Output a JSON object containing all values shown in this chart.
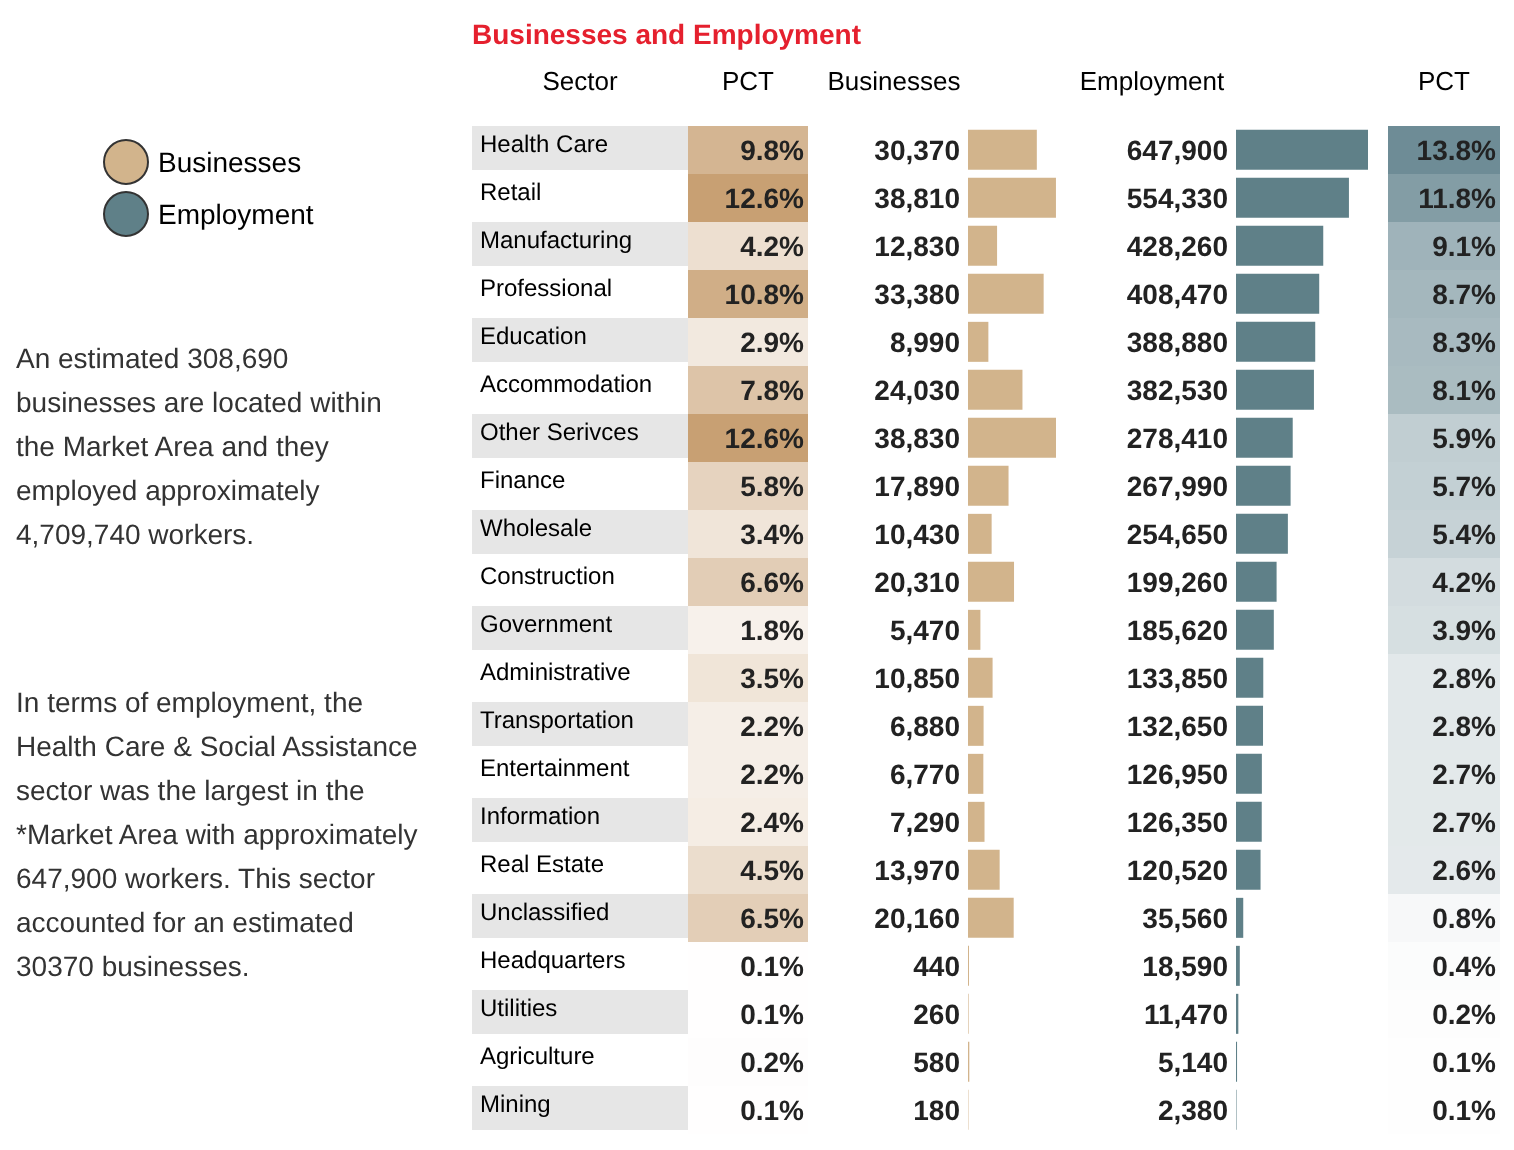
{
  "chart_data": [
    {
      "type": "heatmap",
      "title": "Businesses and Employment",
      "ylabel": "Sector",
      "categories": [
        "PCT"
      ],
      "y_categories": [
        "Health Care",
        "Retail",
        "Manufacturing",
        "Professional",
        "Education",
        "Accommodation",
        "Other Serivces",
        "Finance",
        "Wholesale",
        "Construction",
        "Government",
        "Administrative",
        "Transportation",
        "Entertainment",
        "Information",
        "Real Estate",
        "Unclassified",
        "Headquarters",
        "Utilities",
        "Agriculture",
        "Mining"
      ],
      "cells": [
        [
          9.8
        ],
        [
          12.6
        ],
        [
          4.2
        ],
        [
          10.8
        ],
        [
          2.9
        ],
        [
          7.8
        ],
        [
          12.6
        ],
        [
          5.8
        ],
        [
          3.4
        ],
        [
          6.6
        ],
        [
          1.8
        ],
        [
          3.5
        ],
        [
          2.2
        ],
        [
          2.2
        ],
        [
          2.4
        ],
        [
          4.5
        ],
        [
          6.5
        ],
        [
          0.1
        ],
        [
          0.1
        ],
        [
          0.2
        ],
        [
          0.1
        ]
      ],
      "cell_labels": [
        [
          "9.8%"
        ],
        [
          "12.6%"
        ],
        [
          "4.2%"
        ],
        [
          "10.8%"
        ],
        [
          "2.9%"
        ],
        [
          "7.8%"
        ],
        [
          "12.6%"
        ],
        [
          "5.8%"
        ],
        [
          "3.4%"
        ],
        [
          "6.6%"
        ],
        [
          "1.8%"
        ],
        [
          "3.5%"
        ],
        [
          "2.2%"
        ],
        [
          "2.2%"
        ],
        [
          "2.4%"
        ],
        [
          "4.5%"
        ],
        [
          "6.5%"
        ],
        [
          "0.1%"
        ],
        [
          "0.1%"
        ],
        [
          "0.2%"
        ],
        [
          "0.1%"
        ]
      ],
      "annotations": [
        "An estimated 308,690 businesses are located within the Market Area and they employed approximately 4,709,740 workers.",
        "In terms of employment, the Health Care & Social Assistance sector was the largest in the *Market Area with approximately 647,900 workers. This sector accounted for an estimated 30370 businesses."
      ]
    },
    {
      "type": "bar",
      "orientation": "horizontal",
      "xlabel": "Businesses",
      "legend": "left",
      "categories": [
        null,
        null,
        null,
        null,
        null,
        null,
        null,
        null,
        null,
        null,
        null,
        null,
        null,
        null,
        null,
        null,
        null,
        null,
        null,
        null,
        null
      ],
      "series": [
        {
          "name": "Businesses",
          "color": "#d2b48c",
          "values": [
            30370,
            38810,
            12830,
            33380,
            8990,
            24030,
            38830,
            17890,
            10430,
            20310,
            5470,
            10850,
            6880,
            6770,
            7290,
            13970,
            20160,
            440,
            260,
            580,
            180
          ],
          "value_labels": [
            "30,370",
            "38,810",
            "12,830",
            "33,380",
            "8,990",
            "24,030",
            "38,830",
            "17,890",
            "10,430",
            "20,310",
            "5,470",
            "10,850",
            "6,880",
            "6,770",
            "7,290",
            "13,970",
            "20,160",
            "440",
            "260",
            "580",
            "180"
          ]
        }
      ]
    },
    {
      "type": "bar",
      "orientation": "horizontal",
      "xlabel": "Employment",
      "legend": "left",
      "categories": [
        null,
        null,
        null,
        null,
        null,
        null,
        null,
        null,
        null,
        null,
        null,
        null,
        null,
        null,
        null,
        null,
        null,
        null,
        null,
        null,
        null
      ],
      "series": [
        {
          "name": "Employment",
          "color": "#5f8088",
          "values": [
            647900,
            554330,
            428260,
            408470,
            388880,
            382530,
            278410,
            267990,
            254650,
            199260,
            185620,
            133850,
            132650,
            126950,
            126350,
            120520,
            35560,
            18590,
            11470,
            5140,
            2380
          ],
          "value_labels": [
            "647,900",
            "554,330",
            "428,260",
            "408,470",
            "388,880",
            "382,530",
            "278,410",
            "267,990",
            "254,650",
            "199,260",
            "185,620",
            "133,850",
            "132,650",
            "126,950",
            "126,350",
            "120,520",
            "35,560",
            "18,590",
            "11,470",
            "5,140",
            "2,380"
          ]
        }
      ]
    },
    {
      "type": "heatmap",
      "categories": [
        "PCT"
      ],
      "y_categories": [
        null,
        null,
        null,
        null,
        null,
        null,
        null,
        null,
        null,
        null,
        null,
        null,
        null,
        null,
        null,
        null,
        null,
        null,
        null,
        null,
        null
      ],
      "cells": [
        [
          13.8
        ],
        [
          11.8
        ],
        [
          9.1
        ],
        [
          8.7
        ],
        [
          8.3
        ],
        [
          8.1
        ],
        [
          5.9
        ],
        [
          5.7
        ],
        [
          5.4
        ],
        [
          4.2
        ],
        [
          3.9
        ],
        [
          2.8
        ],
        [
          2.8
        ],
        [
          2.7
        ],
        [
          2.7
        ],
        [
          2.6
        ],
        [
          0.8
        ],
        [
          0.4
        ],
        [
          0.2
        ],
        [
          0.1
        ],
        [
          0.1
        ]
      ],
      "cell_labels": [
        [
          "13.8%"
        ],
        [
          "11.8%"
        ],
        [
          "9.1%"
        ],
        [
          "8.7%"
        ],
        [
          "8.3%"
        ],
        [
          "8.1%"
        ],
        [
          "5.9%"
        ],
        [
          "5.7%"
        ],
        [
          "5.4%"
        ],
        [
          "4.2%"
        ],
        [
          "3.9%"
        ],
        [
          "2.8%"
        ],
        [
          "2.8%"
        ],
        [
          "2.7%"
        ],
        [
          "2.7%"
        ],
        [
          "2.6%"
        ],
        [
          "0.8%"
        ],
        [
          "0.4%"
        ],
        [
          "0.2%"
        ],
        [
          "0.1%"
        ],
        [
          "0.1%"
        ]
      ]
    }
  ]
}
